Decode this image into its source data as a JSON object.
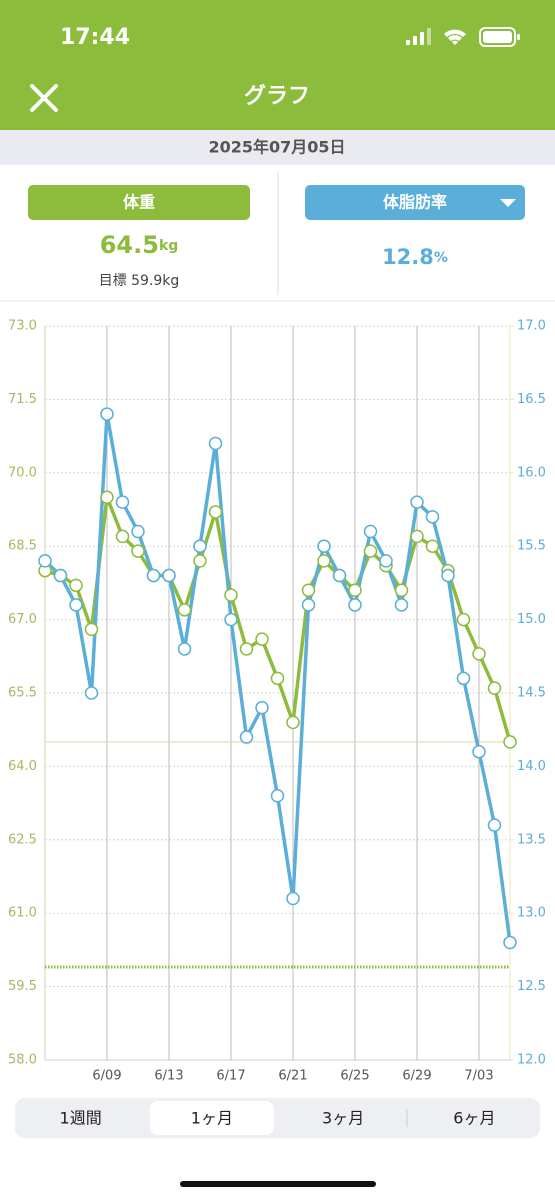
{
  "status_bar": {
    "time": "17:44"
  },
  "header": {
    "title": "グラフ"
  },
  "date": "2025年07月05日",
  "metrics": [
    {
      "value": 64.5,
      "unit": "kg",
      "goal": "目標 59.9kg"
    },
    {
      "value": 12.8,
      "unit": "%"
    }
  ],
  "chart_data": {
    "type": "line",
    "categories": [
      null,
      null,
      null,
      null,
      "6/09",
      null,
      null,
      null,
      "6/13",
      null,
      null,
      null,
      "6/17",
      null,
      null,
      null,
      "6/21",
      null,
      null,
      null,
      "6/25",
      null,
      null,
      null,
      "6/29",
      null,
      null,
      null,
      "7/03",
      null,
      null
    ],
    "series": [
      {
        "name": "体重",
        "color": "#8dbb3c",
        "values": [
          68.0,
          67.9,
          67.7,
          66.8,
          69.5,
          68.7,
          68.4,
          67.9,
          67.9,
          67.2,
          68.2,
          69.2,
          67.5,
          66.4,
          66.6,
          65.8,
          64.9,
          67.6,
          68.2,
          67.9,
          67.6,
          68.4,
          68.1,
          67.6,
          68.7,
          68.5,
          68.0,
          67.0,
          66.3,
          65.6,
          64.5
        ]
      },
      {
        "name": "体脂肪率",
        "color": "#5aaed8",
        "axis": "y2",
        "values": [
          15.4,
          15.3,
          15.1,
          14.5,
          16.4,
          15.8,
          15.6,
          15.3,
          15.3,
          14.8,
          15.5,
          16.2,
          15.0,
          14.2,
          14.4,
          13.8,
          13.1,
          15.1,
          15.5,
          15.3,
          15.1,
          15.6,
          15.4,
          15.1,
          15.8,
          15.7,
          15.3,
          14.6,
          14.1,
          13.6,
          12.8
        ]
      }
    ],
    "ylim": [
      58,
      73
    ],
    "yticks": [
      {
        "value": 58,
        "label": "58.0"
      },
      59.5,
      {
        "value": 61,
        "label": "61.0"
      },
      62.5,
      {
        "value": 64,
        "label": "64.0"
      },
      65.5,
      {
        "value": 67,
        "label": "67.0"
      },
      68.5,
      {
        "value": 70,
        "label": "70.0"
      },
      71.5,
      {
        "value": 73,
        "label": "73.0"
      }
    ],
    "y2lim": [
      12,
      17
    ],
    "y2ticks": [
      {
        "value": 12,
        "label": "12.0"
      },
      12.5,
      {
        "value": 13,
        "label": "13.0"
      },
      13.5,
      {
        "value": 14,
        "label": "14.0"
      },
      14.5,
      {
        "value": 15,
        "label": "15.0"
      },
      15.5,
      {
        "value": 16,
        "label": "16.0"
      },
      16.5,
      {
        "value": 17,
        "label": "17.0"
      }
    ],
    "hlines": [
      {
        "value": 64.5,
        "color": "#e8d3a8",
        "style": "solid"
      },
      {
        "value": 59.9,
        "color": "#8dbb3c",
        "style": "dotted"
      }
    ],
    "grid": true
  },
  "period_tabs": {
    "options": [
      "1週間",
      "1ヶ月",
      "3ヶ月",
      "6ヶ月"
    ],
    "selected": 1
  }
}
